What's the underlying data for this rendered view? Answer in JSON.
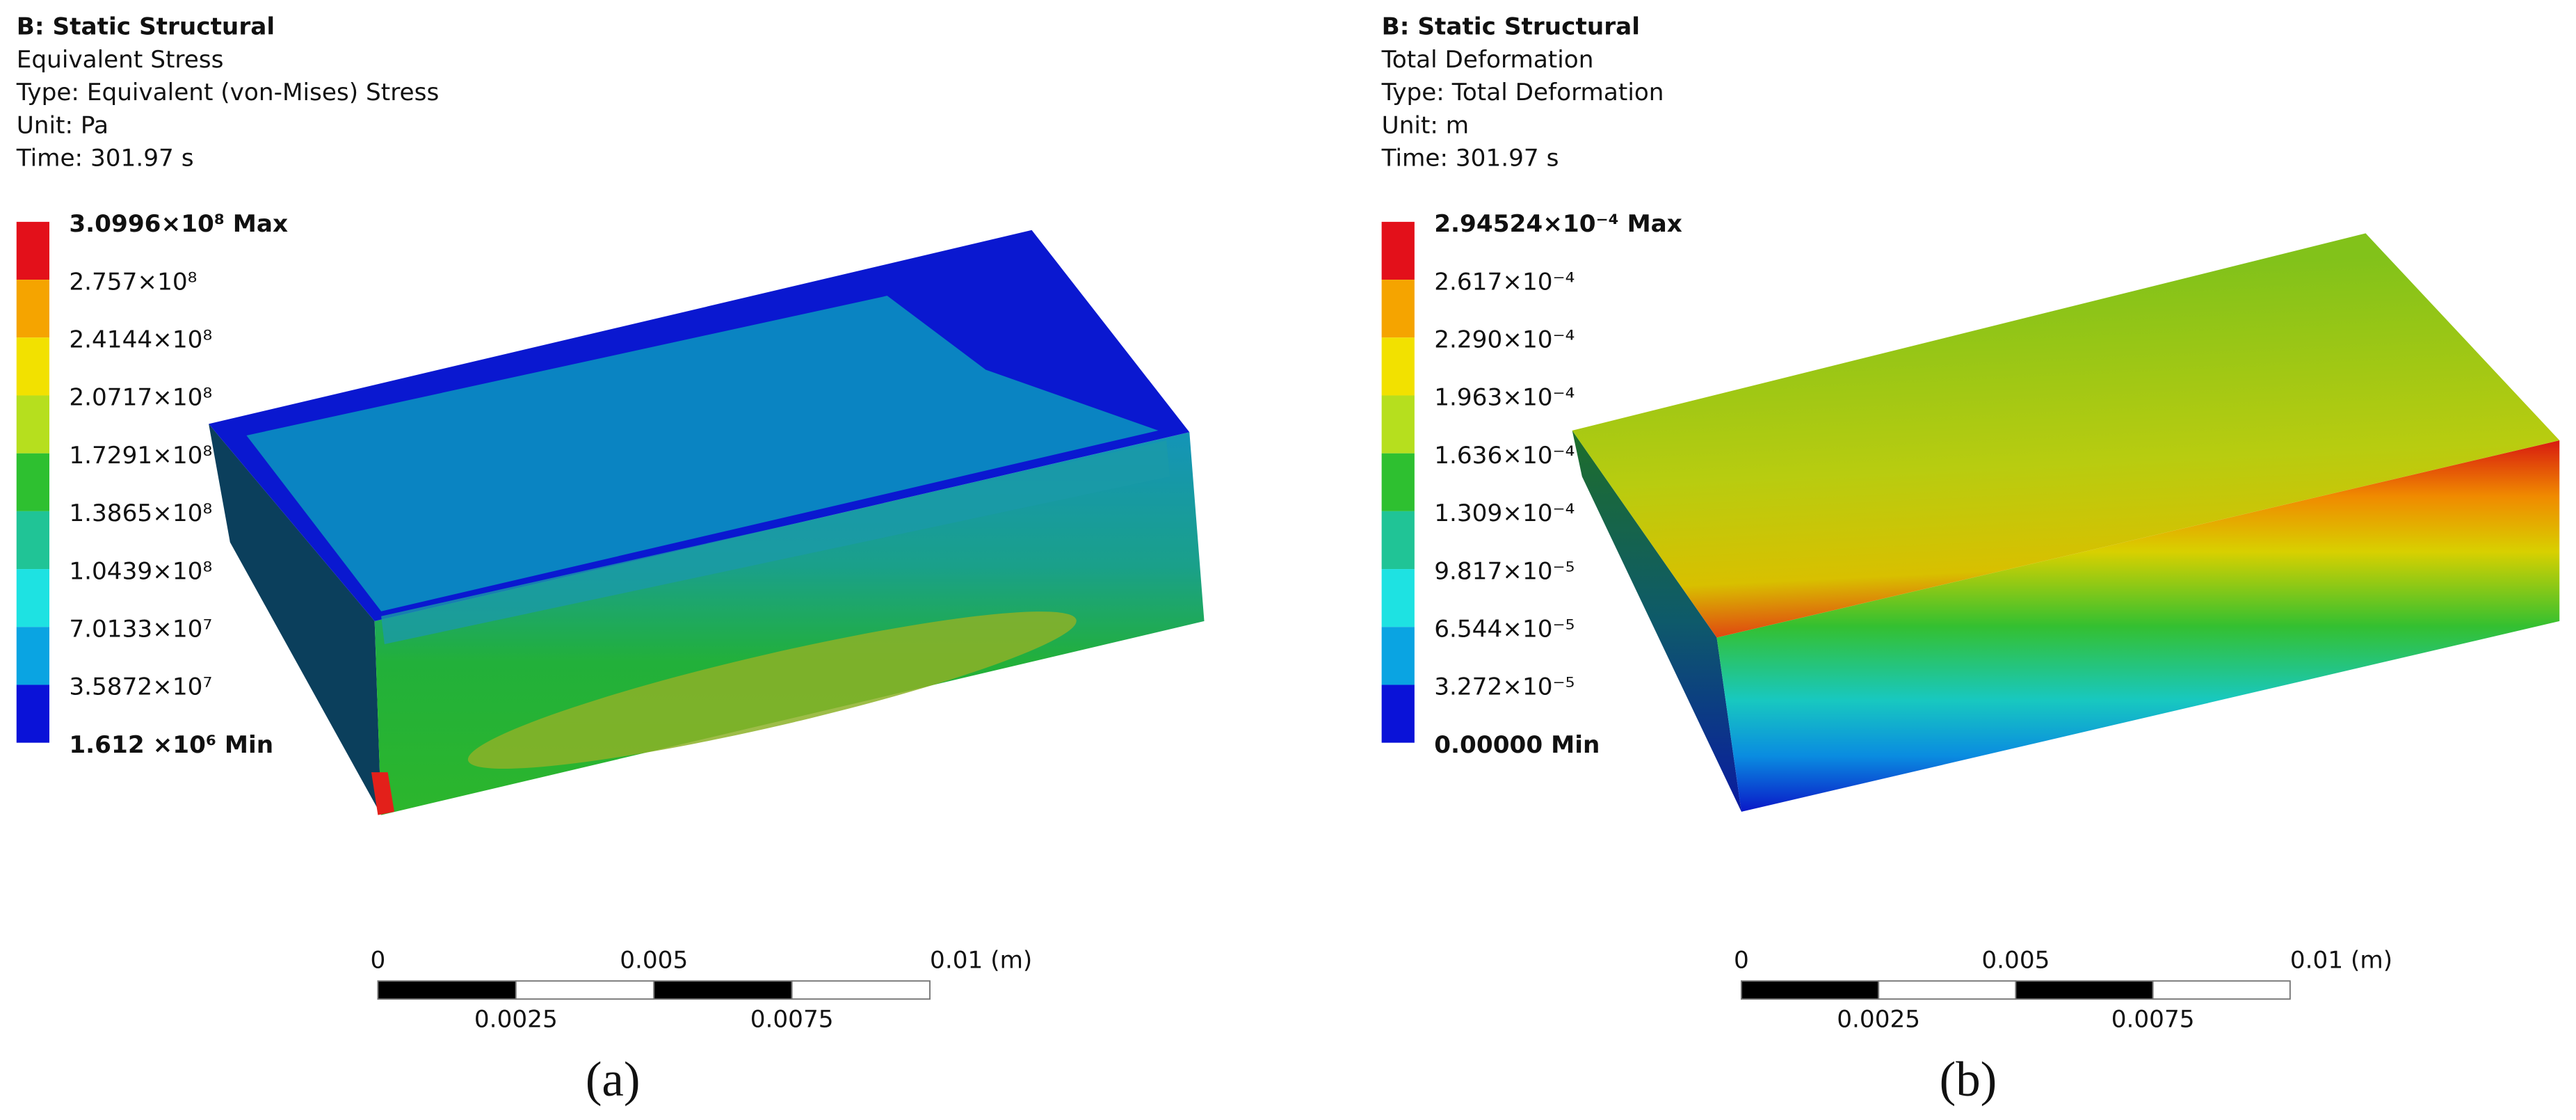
{
  "panels": [
    {
      "header": {
        "title": "B: Static Structural",
        "lines": [
          "Equivalent Stress",
          "Type: Equivalent (von-Mises) Stress",
          "Unit: Pa",
          "Time: 301.97 s"
        ]
      },
      "legend": {
        "labels": [
          "3.0996×10⁸ Max",
          "2.757×10⁸",
          "2.4144×10⁸",
          "2.0717×10⁸",
          "1.7291×10⁸",
          "1.3865×10⁸",
          "1.0439×10⁸",
          "7.0133×10⁷",
          "3.5872×10⁷",
          "1.612 ×10⁶ Min"
        ],
        "colors": [
          "#e3101a",
          "#f5a400",
          "#f2e100",
          "#b6df1e",
          "#2ec030",
          "#20c496",
          "#1ee2e2",
          "#0aa4e2",
          "#0a12d8"
        ]
      },
      "scale_bar": {
        "top_labels": [
          "0",
          "0.005",
          "0.01 (m)"
        ],
        "bottom_labels": [
          "0.0025",
          "0.0075"
        ]
      },
      "caption": "(a)"
    },
    {
      "header": {
        "title": "B: Static Structural",
        "lines": [
          "Total Deformation",
          "Type: Total Deformation",
          "Unit: m",
          "Time: 301.97 s"
        ]
      },
      "legend": {
        "labels": [
          "2.94524×10⁻⁴ Max",
          "2.617×10⁻⁴",
          "2.290×10⁻⁴",
          "1.963×10⁻⁴",
          "1.636×10⁻⁴",
          "1.309×10⁻⁴",
          "9.817×10⁻⁵",
          "6.544×10⁻⁵",
          "3.272×10⁻⁵",
          "0.00000 Min"
        ],
        "colors": [
          "#e3101a",
          "#f5a400",
          "#f2e100",
          "#b6df1e",
          "#2ec030",
          "#20c496",
          "#1ee2e2",
          "#0aa4e2",
          "#0a12d8"
        ]
      },
      "scale_bar": {
        "top_labels": [
          "0",
          "0.005",
          "0.01 (m)"
        ],
        "bottom_labels": [
          "0.0025",
          "0.0075"
        ]
      },
      "caption": "(b)"
    }
  ]
}
